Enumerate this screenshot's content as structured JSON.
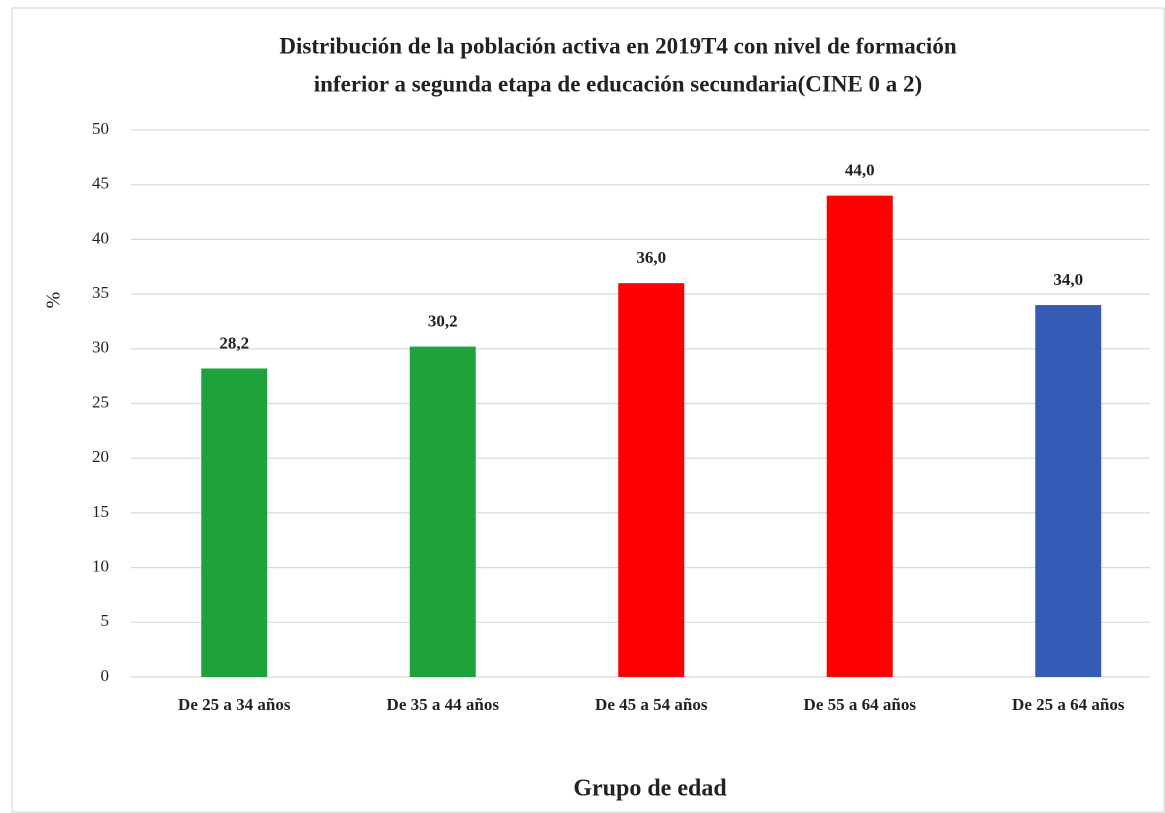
{
  "chart_data": {
    "type": "bar",
    "title": [
      "Distribución de la población activa en 2019T4 con nivel de formación",
      "inferior a segunda etapa de educación secundaria(CINE 0 a 2)"
    ],
    "x_label": "Grupo de edad",
    "y_label": "%",
    "categories": [
      "De 25 a 34 años",
      "De 35 a 44 años",
      "De 45 a 54 años",
      "De 55 a 64 años",
      "De 25 a 64 años"
    ],
    "values": [
      28.2,
      30.2,
      36.0,
      44.0,
      34.0
    ],
    "value_labels": [
      "28,2",
      "30,2",
      "36,0",
      "44,0",
      "34,0"
    ],
    "colors": [
      "#1ea23c",
      "#1ea23c",
      "#ff0000",
      "#ff0000",
      "#345cb6"
    ],
    "ylim": [
      0,
      50
    ],
    "yticks": [
      0,
      5,
      10,
      15,
      20,
      25,
      30,
      35,
      40,
      45,
      50
    ],
    "grid": true
  }
}
